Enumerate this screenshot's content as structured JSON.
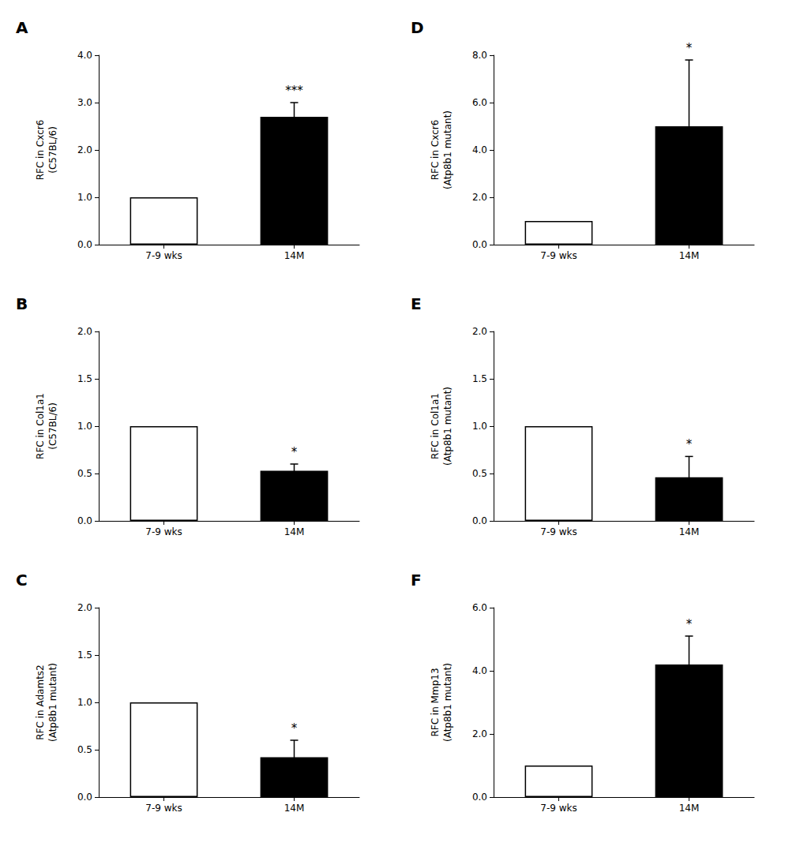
{
  "chart_data": [
    {
      "type": "bar",
      "title": "A",
      "ylabel": "RFC in Cxcr6\n(C57BL/6)",
      "categories": [
        "7-9 wks",
        "14M"
      ],
      "values": [
        1.0,
        2.7
      ],
      "errors": [
        0.0,
        0.3
      ],
      "colors": [
        "white",
        "black"
      ],
      "ylim": [
        0,
        4.0
      ],
      "yticks": [
        {
          "value": 0.0,
          "label": "0.0"
        },
        {
          "value": 1.0,
          "label": "1.0"
        },
        {
          "value": 2.0,
          "label": "2.0"
        },
        {
          "value": 3.0,
          "label": "3.0"
        },
        {
          "value": 4.0,
          "label": "4.0"
        }
      ],
      "annotations": [
        {
          "text": "***",
          "category": "14M"
        }
      ],
      "grid": false
    },
    {
      "type": "bar",
      "title": "D",
      "ylabel": "RFC in Cxcr6\n(Atp8b1 mutant)",
      "categories": [
        "7-9 wks",
        "14M"
      ],
      "values": [
        1.0,
        5.0
      ],
      "errors": [
        0.0,
        2.8
      ],
      "colors": [
        "white",
        "black"
      ],
      "ylim": [
        0,
        8.0
      ],
      "yticks": [
        {
          "value": 0.0,
          "label": "0.0"
        },
        {
          "value": 2.0,
          "label": "2.0"
        },
        {
          "value": 4.0,
          "label": "4.0"
        },
        {
          "value": 6.0,
          "label": "6.0"
        },
        {
          "value": 8.0,
          "label": "8.0"
        }
      ],
      "annotations": [
        {
          "text": "*",
          "category": "14M"
        }
      ],
      "grid": false
    },
    {
      "type": "bar",
      "title": "B",
      "ylabel": "RFC in Col1a1\n(C57BL/6)",
      "categories": [
        "7-9 wks",
        "14M"
      ],
      "values": [
        1.0,
        0.53
      ],
      "errors": [
        0.0,
        0.07
      ],
      "colors": [
        "white",
        "black"
      ],
      "ylim": [
        0,
        2.0
      ],
      "yticks": [
        {
          "value": 0.0,
          "label": "0.0"
        },
        0.5,
        {
          "value": 1.0,
          "label": "1.0"
        },
        1.5,
        {
          "value": 2.0,
          "label": "2.0"
        }
      ],
      "annotations": [
        {
          "text": "*",
          "category": "14M"
        }
      ],
      "grid": false
    },
    {
      "type": "bar",
      "title": "E",
      "ylabel": "RFC in Col1a1\n(Atp8b1 mutant)",
      "categories": [
        "7-9 wks",
        "14M"
      ],
      "values": [
        1.0,
        0.46
      ],
      "errors": [
        0.0,
        0.22
      ],
      "colors": [
        "white",
        "black"
      ],
      "ylim": [
        0,
        2.0
      ],
      "yticks": [
        {
          "value": 0.0,
          "label": "0.0"
        },
        0.5,
        {
          "value": 1.0,
          "label": "1.0"
        },
        1.5,
        {
          "value": 2.0,
          "label": "2.0"
        }
      ],
      "annotations": [
        {
          "text": "*",
          "category": "14M"
        }
      ],
      "grid": false
    },
    {
      "type": "bar",
      "title": "C",
      "ylabel": "RFC in Adamts2\n(Atp8b1 mutant)",
      "categories": [
        "7-9 wks",
        "14M"
      ],
      "values": [
        1.0,
        0.42
      ],
      "errors": [
        0.0,
        0.18
      ],
      "colors": [
        "white",
        "black"
      ],
      "ylim": [
        0,
        2.0
      ],
      "yticks": [
        {
          "value": 0.0,
          "label": "0.0"
        },
        0.5,
        {
          "value": 1.0,
          "label": "1.0"
        },
        1.5,
        {
          "value": 2.0,
          "label": "2.0"
        }
      ],
      "annotations": [
        {
          "text": "*",
          "category": "14M"
        }
      ],
      "grid": false
    },
    {
      "type": "bar",
      "title": "F",
      "ylabel": "RFC in Mmp13\n(Atp8b1 mutant)",
      "categories": [
        "7-9 wks",
        "14M"
      ],
      "values": [
        1.0,
        4.2
      ],
      "errors": [
        0.0,
        0.9
      ],
      "colors": [
        "white",
        "black"
      ],
      "ylim": [
        0,
        6.0
      ],
      "yticks": [
        {
          "value": 0.0,
          "label": "0.0"
        },
        {
          "value": 2.0,
          "label": "2.0"
        },
        {
          "value": 4.0,
          "label": "4.0"
        },
        {
          "value": 6.0,
          "label": "6.0"
        }
      ],
      "annotations": [
        {
          "text": "*",
          "category": "14M"
        }
      ],
      "grid": false
    }
  ]
}
